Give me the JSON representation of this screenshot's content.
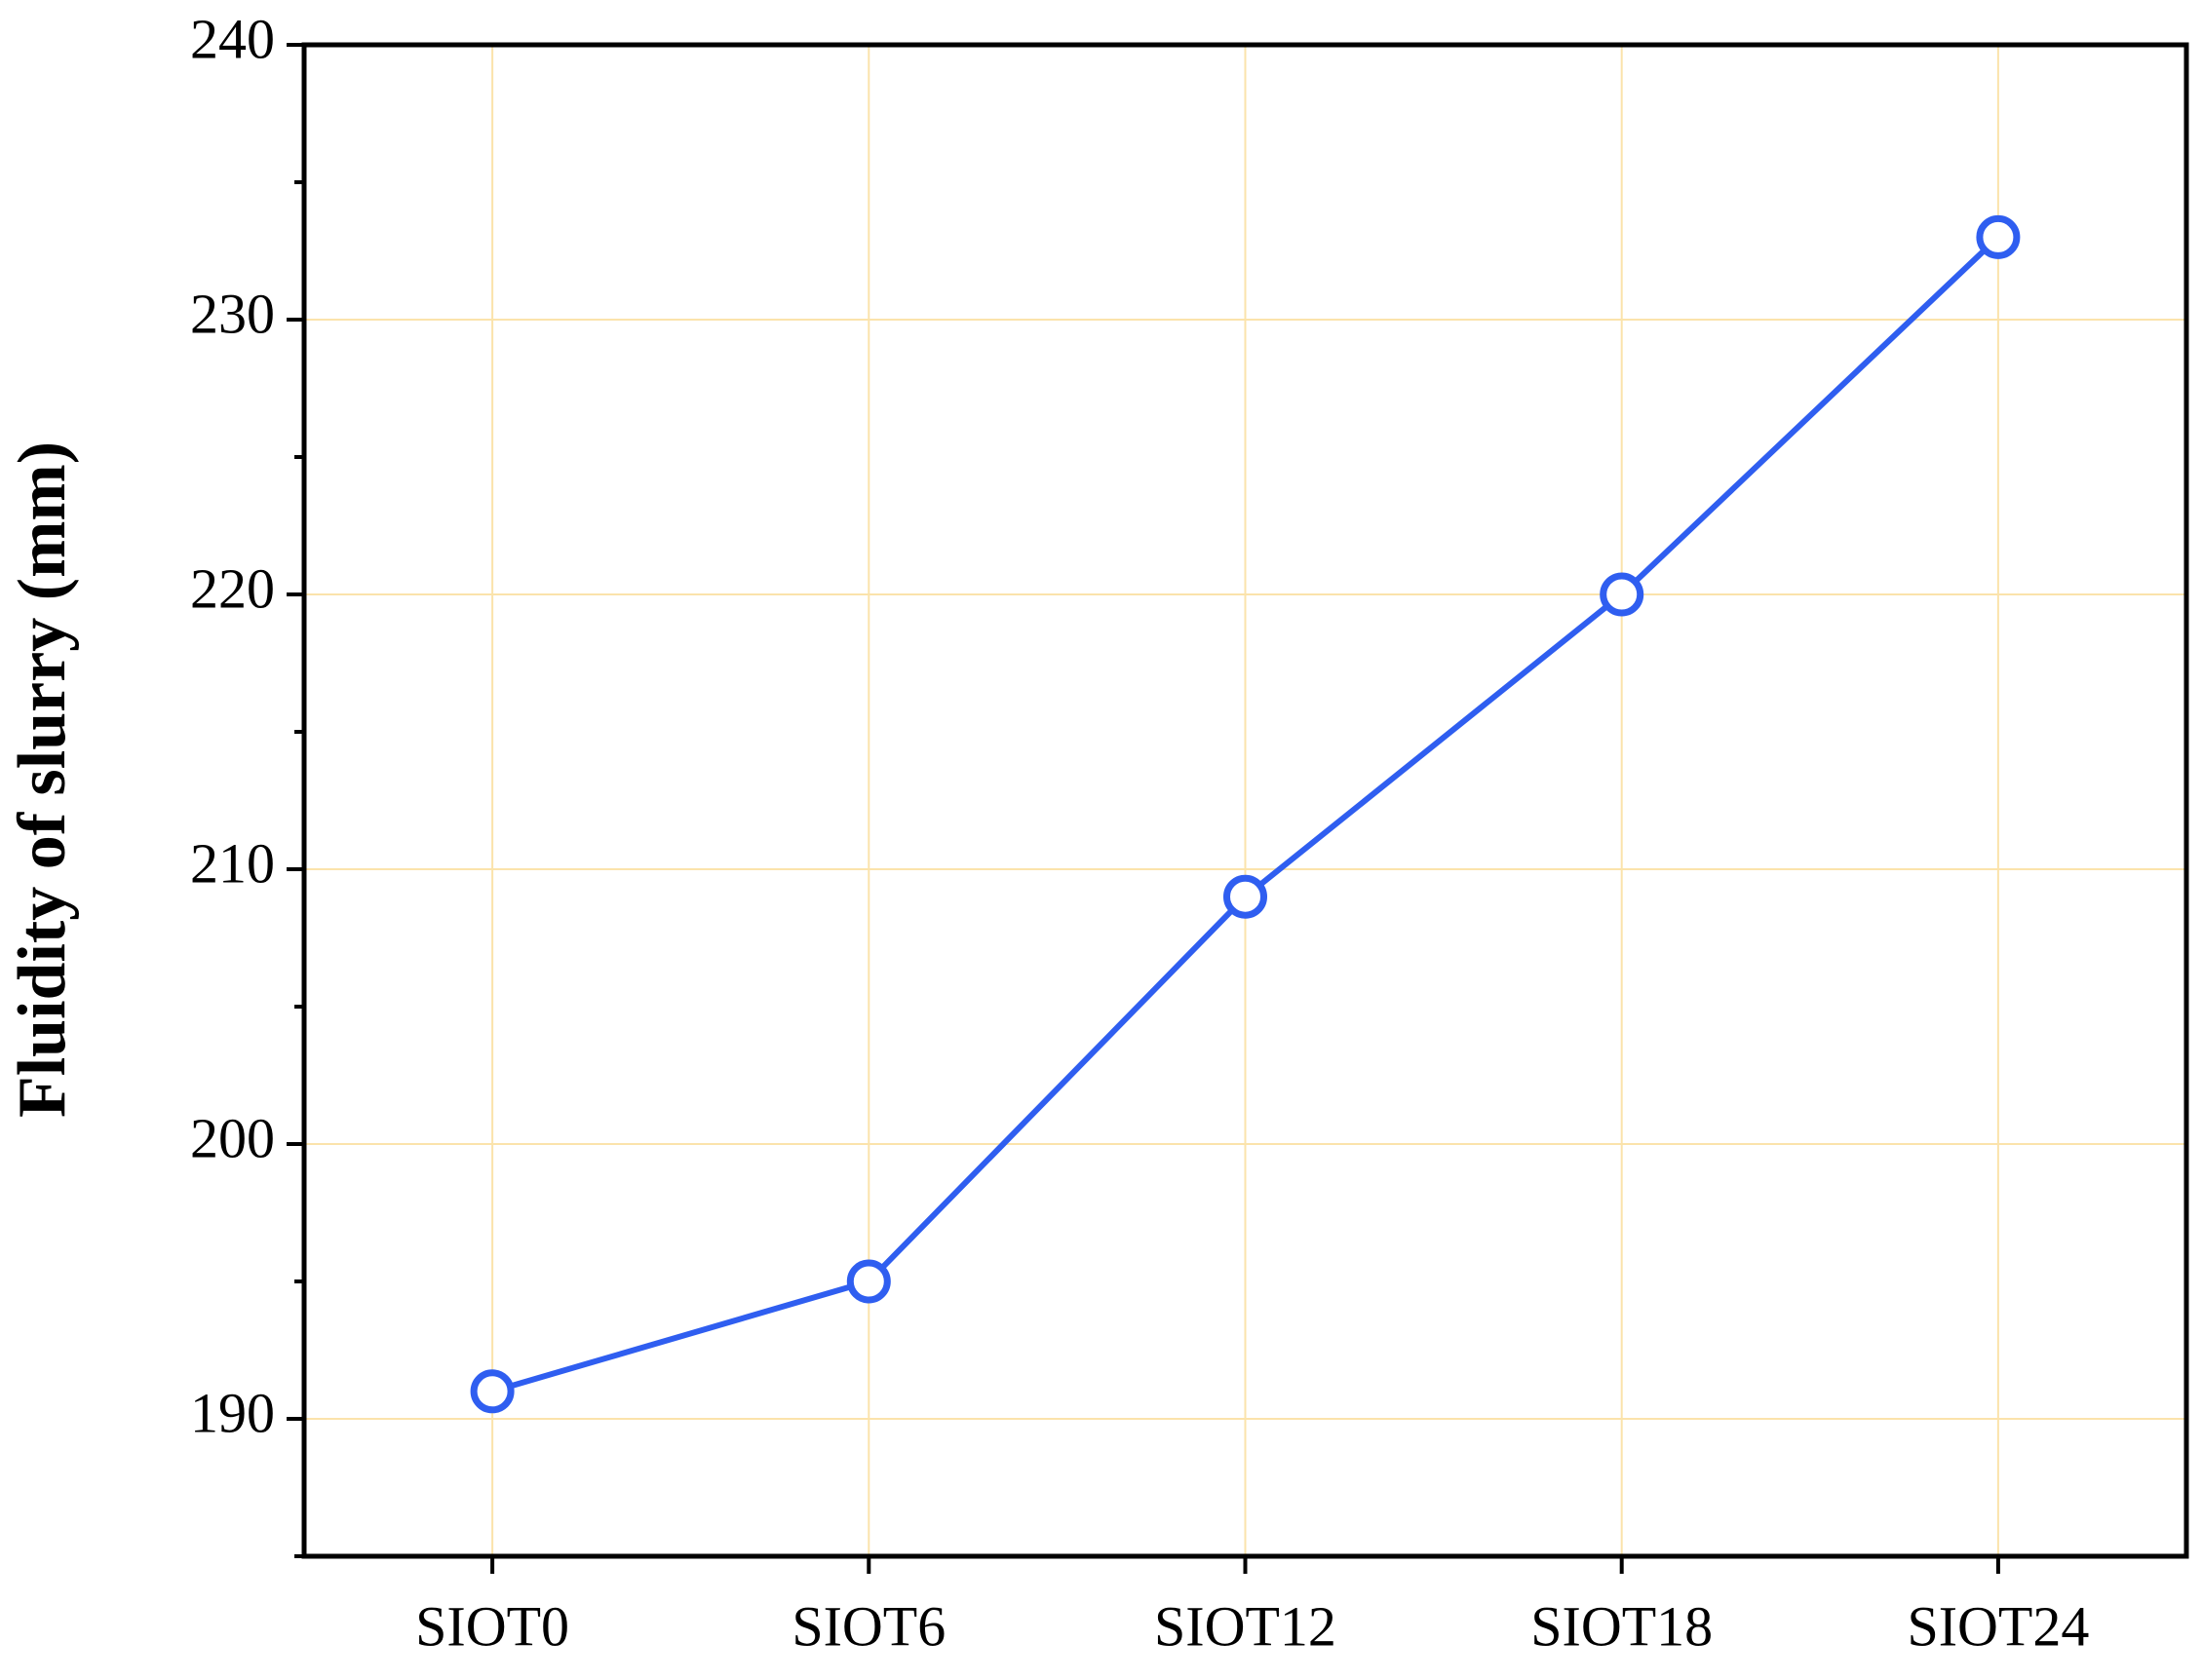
{
  "chart_data": {
    "type": "line",
    "y_label": "Fluidity of slurry (mm)",
    "categories": [
      "SIOT0",
      "SIOT6",
      "SIOT12",
      "SIOT18",
      "SIOT24"
    ],
    "series": [
      {
        "name": "Fluidity",
        "color": "#2f5ef0",
        "values": [
          191,
          195,
          209,
          220,
          233
        ]
      }
    ],
    "ylim": [
      185,
      240
    ],
    "yticks": [
      190,
      200,
      210,
      220,
      230,
      240
    ],
    "minor_yticks": [
      185,
      195,
      205,
      215,
      225,
      235
    ],
    "grid": true,
    "grid_color": "#fbe3ab"
  }
}
